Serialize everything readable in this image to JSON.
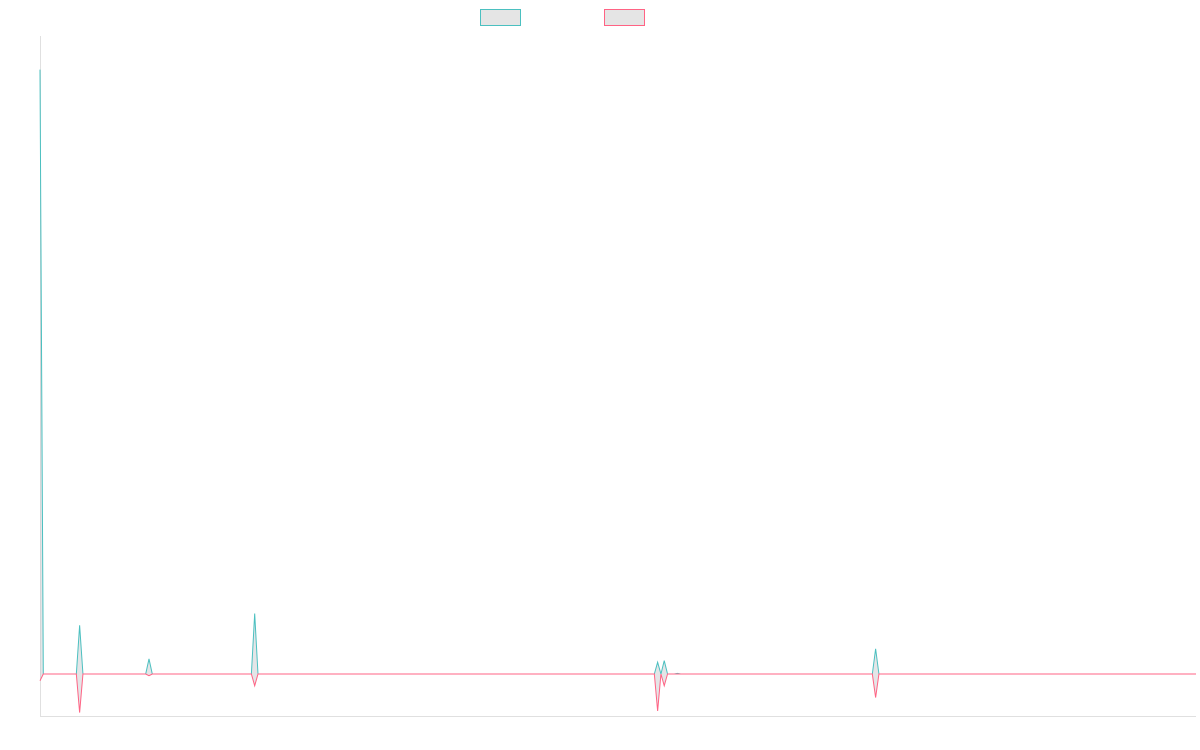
{
  "chart_data": {
    "type": "line",
    "title": "",
    "xlabel": "",
    "ylabel": "",
    "grid": false,
    "legend_position": "top-center",
    "x": [
      0,
      1,
      2,
      3,
      4,
      5,
      6,
      7,
      8,
      9,
      10,
      11,
      12,
      13,
      14,
      15,
      16,
      17,
      18,
      19,
      20,
      21,
      22,
      23,
      24,
      25,
      26,
      27,
      28,
      29,
      30,
      31,
      32,
      33,
      34,
      35,
      36,
      37,
      38,
      39,
      40,
      41,
      42,
      43,
      44,
      45,
      46,
      47,
      48,
      49,
      50,
      51,
      52,
      53,
      54,
      55,
      56,
      57,
      58,
      59,
      60,
      61,
      62,
      63,
      64,
      65,
      66,
      67,
      68,
      69,
      70,
      71,
      72,
      73,
      74,
      75,
      76,
      77,
      78,
      79,
      80,
      81,
      82,
      83,
      84,
      85,
      86,
      87,
      88,
      89,
      90,
      91,
      92,
      93,
      94,
      95,
      96,
      97,
      98,
      99,
      100,
      101,
      102,
      103,
      104,
      105,
      106,
      107,
      108,
      109,
      110,
      111,
      112,
      113,
      114,
      115,
      116,
      117,
      118,
      119,
      120,
      121,
      122,
      123,
      124,
      125,
      126,
      127,
      128,
      129,
      130,
      131,
      132,
      133,
      134,
      135,
      136,
      137,
      138,
      139,
      140,
      141,
      142,
      143,
      144,
      145,
      146,
      147,
      148,
      149,
      150,
      151,
      152,
      153,
      154,
      155,
      156,
      157,
      158,
      159,
      160,
      161,
      162,
      163,
      164,
      165,
      166,
      167,
      168,
      169,
      170,
      171,
      172,
      173,
      174,
      175,
      176,
      177,
      178,
      179,
      180,
      181,
      182,
      183,
      184,
      185,
      186,
      187,
      188,
      189,
      190,
      191,
      192,
      193,
      194,
      195,
      196,
      197,
      198,
      199,
      200,
      201,
      202,
      203,
      204,
      205,
      206,
      207,
      208,
      209,
      210,
      211,
      212,
      213,
      214,
      215,
      216,
      217,
      218,
      219,
      220,
      221,
      222,
      223,
      224,
      225,
      226,
      227,
      228,
      229,
      230,
      231,
      232,
      233,
      234,
      235,
      236,
      237,
      238,
      239,
      240,
      241,
      242,
      243,
      244,
      245,
      246,
      247,
      248,
      249,
      250,
      251,
      252,
      253,
      254,
      255,
      256,
      257,
      258,
      259,
      260,
      261,
      262,
      263,
      264,
      265,
      266,
      267,
      268,
      269,
      270,
      271,
      272,
      273,
      274,
      275,
      276,
      277,
      278,
      279,
      280,
      281,
      282,
      283,
      284,
      285,
      286,
      287,
      288,
      289,
      290,
      291,
      292,
      293,
      294,
      295,
      296,
      297,
      298,
      299,
      300,
      301,
      302,
      303,
      304,
      305,
      306,
      307,
      308,
      309,
      310,
      311,
      312,
      313,
      314,
      315,
      316,
      317,
      318,
      319,
      320,
      321,
      322,
      323,
      324,
      325,
      326,
      327,
      328,
      329,
      330,
      331,
      332,
      333,
      334,
      335,
      336,
      337,
      338,
      339,
      340,
      341,
      342,
      343,
      344,
      345,
      346,
      347,
      348,
      349,
      350
    ],
    "ylim": [
      -1.25,
      19.0
    ],
    "baseline": 0,
    "series": [
      {
        "name": "",
        "color": "#4bc0c0",
        "fill": "rgba(201,203,207,0.5)",
        "spikes": [
          [
            0,
            18.0
          ],
          [
            1,
            0.0
          ],
          [
            12,
            1.45
          ],
          [
            33,
            0.45
          ],
          [
            65,
            1.8
          ],
          [
            187,
            0.35
          ],
          [
            189,
            0.4
          ],
          [
            193,
            0.02
          ],
          [
            253,
            0.75
          ]
        ]
      },
      {
        "name": "",
        "color": "#ff6384",
        "fill": "rgba(201,203,207,0.5)",
        "spikes": [
          [
            0,
            -0.2
          ],
          [
            1,
            0.0
          ],
          [
            12,
            -1.15
          ],
          [
            33,
            -0.05
          ],
          [
            65,
            -0.35
          ],
          [
            187,
            -1.1
          ],
          [
            189,
            -0.35
          ],
          [
            253,
            -0.7
          ]
        ]
      }
    ]
  }
}
